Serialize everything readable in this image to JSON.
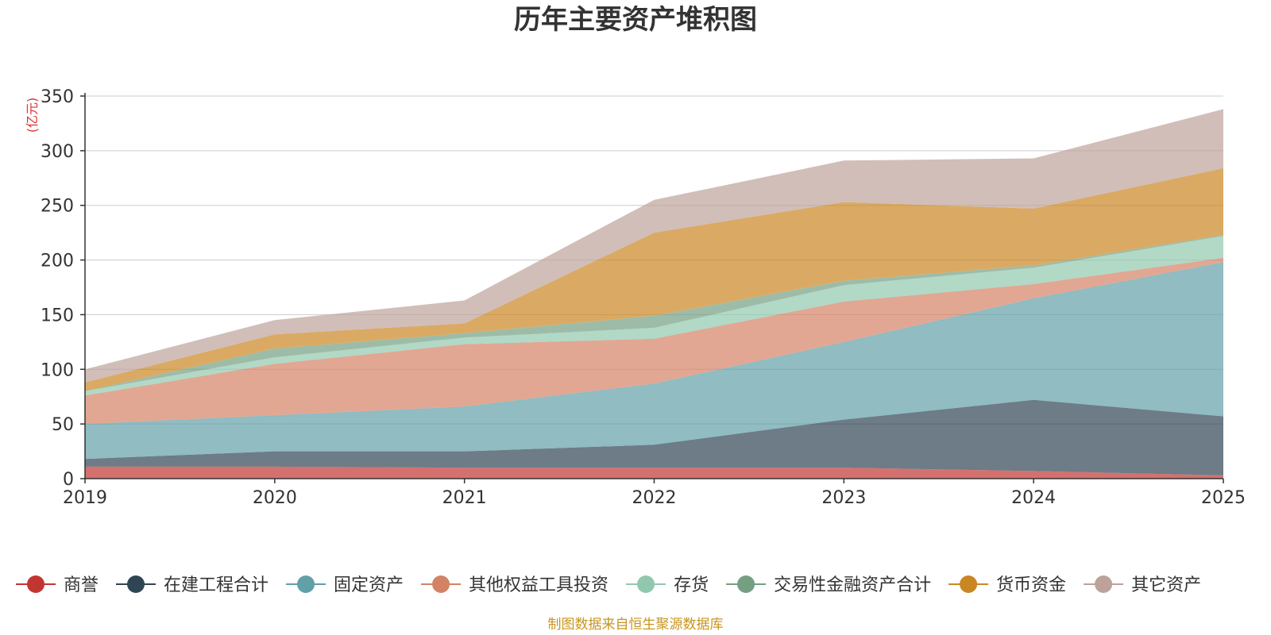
{
  "chart_data": {
    "type": "area",
    "stacked": true,
    "title": "历年主要资产堆积图",
    "ylabel": "(亿元)",
    "ylim": [
      0,
      350
    ],
    "yticks": [
      "0",
      "50",
      "100",
      "150",
      "200",
      "250",
      "300",
      "350"
    ],
    "categories": [
      "2019",
      "2020",
      "2021",
      "2022",
      "2023",
      "2024",
      "2025"
    ],
    "grid": true,
    "legend_position": "bottom",
    "series": [
      {
        "name": "商誉",
        "color": "#c23531",
        "values": [
          11,
          11,
          10,
          10,
          10,
          7,
          3
        ]
      },
      {
        "name": "在建工程合计",
        "color": "#2f4554",
        "values": [
          7,
          14,
          15,
          21,
          44,
          65,
          54
        ]
      },
      {
        "name": "固定资产",
        "color": "#61a0a8",
        "values": [
          32,
          33,
          41,
          56,
          71,
          93,
          141
        ]
      },
      {
        "name": "其他权益工具投资",
        "color": "#d48265",
        "values": [
          26,
          47,
          57,
          41,
          37,
          13,
          4
        ]
      },
      {
        "name": "存货",
        "color": "#91c7ae",
        "values": [
          4,
          6,
          6,
          10,
          15,
          15,
          20
        ]
      },
      {
        "name": "交易性金融资产合计",
        "color": "#749f83",
        "values": [
          0,
          8,
          4,
          11,
          4,
          2,
          1
        ]
      },
      {
        "name": "货币资金",
        "color": "#ca8622",
        "values": [
          8,
          13,
          9,
          76,
          72,
          52,
          61
        ]
      },
      {
        "name": "其它资产",
        "color": "#bda29a",
        "values": [
          12,
          13,
          21,
          30,
          38,
          46,
          54
        ]
      }
    ]
  },
  "footer": {
    "source": "制图数据来自恒生聚源数据库"
  }
}
